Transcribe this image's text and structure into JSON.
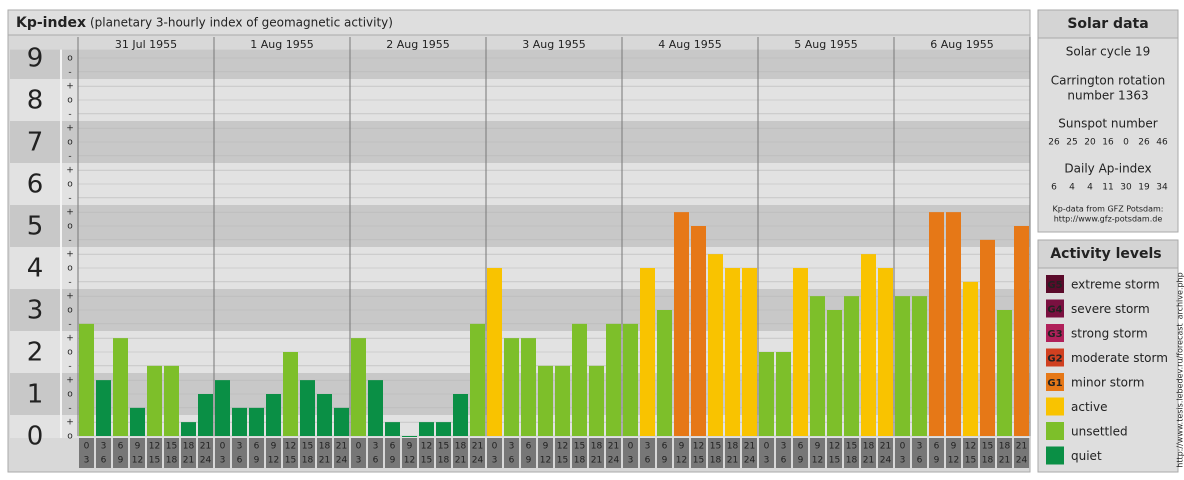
{
  "chart_data": {
    "type": "bar",
    "title": "Kp-index",
    "subtitle": "(planetary 3-hourly index of geomagnetic activity)",
    "days": [
      "31 Jul 1955",
      "1 Aug 1955",
      "2 Aug 1955",
      "3 Aug 1955",
      "4 Aug 1955",
      "5 Aug 1955",
      "6 Aug 1955"
    ],
    "hour_ranges": [
      [
        "0",
        "3"
      ],
      [
        "3",
        "6"
      ],
      [
        "6",
        "9"
      ],
      [
        "9",
        "12"
      ],
      [
        "12",
        "15"
      ],
      [
        "15",
        "18"
      ],
      [
        "18",
        "21"
      ],
      [
        "21",
        "24"
      ]
    ],
    "values": [
      2.67,
      1.33,
      2.33,
      0.67,
      1.67,
      1.67,
      0.33,
      1,
      1.33,
      0.67,
      0.67,
      1,
      2,
      1.33,
      1,
      0.67,
      2.33,
      1.33,
      0.33,
      0,
      0.33,
      0.33,
      1,
      2.67,
      4,
      2.33,
      2.33,
      1.67,
      1.67,
      2.67,
      1.67,
      2.67,
      2.67,
      4,
      3,
      5.33,
      5,
      4.33,
      4,
      4,
      2,
      2,
      4,
      3.33,
      3,
      3.33,
      4.33,
      4,
      3.33,
      3.33,
      5.33,
      5.33,
      3.67,
      4.67,
      3,
      5
    ],
    "colors": [
      "#7dbf2a",
      "#0a8f45",
      "#7dbf2a",
      "#0a8f45",
      "#7dbf2a",
      "#7dbf2a",
      "#0a8f45",
      "#0a8f45",
      "#0a8f45",
      "#0a8f45",
      "#0a8f45",
      "#0a8f45",
      "#7dbf2a",
      "#0a8f45",
      "#0a8f45",
      "#0a8f45",
      "#7dbf2a",
      "#0a8f45",
      "#0a8f45",
      "#0a8f45",
      "#0a8f45",
      "#0a8f45",
      "#0a8f45",
      "#7dbf2a",
      "#f9c300",
      "#7dbf2a",
      "#7dbf2a",
      "#7dbf2a",
      "#7dbf2a",
      "#7dbf2a",
      "#7dbf2a",
      "#7dbf2a",
      "#7dbf2a",
      "#f9c300",
      "#7dbf2a",
      "#e67817",
      "#e67817",
      "#f9c300",
      "#f9c300",
      "#f9c300",
      "#7dbf2a",
      "#7dbf2a",
      "#f9c300",
      "#7dbf2a",
      "#7dbf2a",
      "#7dbf2a",
      "#f9c300",
      "#f9c300",
      "#7dbf2a",
      "#7dbf2a",
      "#e67817",
      "#e67817",
      "#f9c300",
      "#e67817",
      "#7dbf2a",
      "#e67817"
    ],
    "ylim": [
      0,
      9.2
    ],
    "yticks": [
      0,
      1,
      2,
      3,
      4,
      5,
      6,
      7,
      8,
      9
    ],
    "minor_ticks": [
      {
        "value": 0,
        "label": "o"
      },
      {
        "value": 0.33,
        "label": "+"
      },
      {
        "value": 0.67,
        "label": "-"
      },
      {
        "value": 1,
        "label": "o"
      },
      {
        "value": 1.33,
        "label": "+"
      },
      {
        "value": 1.67,
        "label": "-"
      },
      {
        "value": 2,
        "label": "o"
      },
      {
        "value": 2.33,
        "label": "+"
      },
      {
        "value": 2.67,
        "label": "-"
      },
      {
        "value": 3,
        "label": "o"
      },
      {
        "value": 3.33,
        "label": "+"
      },
      {
        "value": 3.67,
        "label": "-"
      },
      {
        "value": 4,
        "label": "o"
      },
      {
        "value": 4.33,
        "label": "+"
      },
      {
        "value": 4.67,
        "label": "-"
      },
      {
        "value": 5,
        "label": "o"
      },
      {
        "value": 5.33,
        "label": "+"
      },
      {
        "value": 5.67,
        "label": "-"
      },
      {
        "value": 6,
        "label": "o"
      },
      {
        "value": 6.33,
        "label": "+"
      },
      {
        "value": 6.67,
        "label": "-"
      },
      {
        "value": 7,
        "label": "o"
      },
      {
        "value": 7.33,
        "label": "+"
      },
      {
        "value": 7.67,
        "label": "-"
      },
      {
        "value": 8,
        "label": "o"
      },
      {
        "value": 8.33,
        "label": "+"
      },
      {
        "value": 8.67,
        "label": "-"
      },
      {
        "value": 9,
        "label": "o"
      }
    ],
    "grid": true
  },
  "solar_data": {
    "title": "Solar data",
    "solar_cycle": "Solar cycle 19",
    "carrington_line1": "Carrington rotation",
    "carrington_line2": "number 1363",
    "sunspot_title": "Sunspot number",
    "sunspot_numbers": [
      26,
      25,
      20,
      16,
      0,
      26,
      46
    ],
    "ap_title": "Daily Ap-index",
    "ap_values": [
      6,
      4,
      4,
      11,
      30,
      19,
      34
    ],
    "source_line1": "Kp-data from GFZ Potsdam:",
    "source_line2": "http://www.gfz-potsdam.de"
  },
  "activity_levels": {
    "title": "Activity levels",
    "items": [
      {
        "badge": "G5",
        "label": "extreme storm",
        "color": "#5a0a2a"
      },
      {
        "badge": "G4",
        "label": "severe storm",
        "color": "#7a1040"
      },
      {
        "badge": "G3",
        "label": "strong storm",
        "color": "#b0205a"
      },
      {
        "badge": "G2",
        "label": "moderate storm",
        "color": "#d04020"
      },
      {
        "badge": "G1",
        "label": "minor storm",
        "color": "#e67817"
      },
      {
        "badge": null,
        "label": "active",
        "color": "#f9c300"
      },
      {
        "badge": null,
        "label": "unsettled",
        "color": "#7dbf2a"
      },
      {
        "badge": null,
        "label": "quiet",
        "color": "#0a8f45"
      }
    ]
  },
  "credit": "http://www.tesis.lebedev.ru/forecast_archive.php"
}
